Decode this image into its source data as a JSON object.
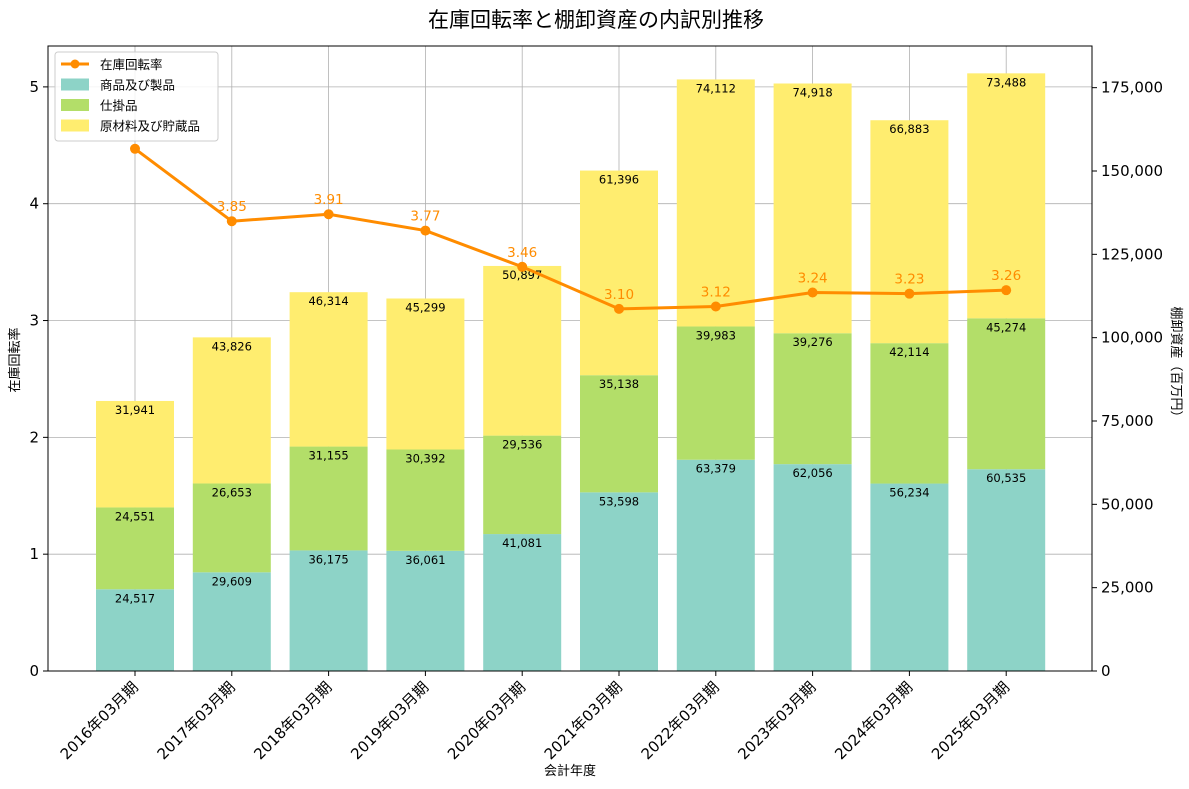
{
  "chart_data": {
    "type": "bar",
    "stacked": true,
    "title": "在庫回転率と棚卸資産の内訳別推移",
    "xlabel": "会計年度",
    "ylabel_left": "在庫回転率",
    "ylabel_right": "棚卸資産（百万円）",
    "ylim_left": [
      0,
      5.35
    ],
    "ylim_right": [
      0,
      187500
    ],
    "yticks_left": [
      "0",
      "1",
      "2",
      "3",
      "4",
      "5"
    ],
    "yticks_right": [
      "0",
      "25,000",
      "50,000",
      "75,000",
      "100,000",
      "125,000",
      "150,000",
      "175,000"
    ],
    "legend_position": "upper-left",
    "grid": true,
    "categories": [
      "2016年03月期",
      "2017年03月期",
      "2018年03月期",
      "2019年03月期",
      "2020年03月期",
      "2021年03月期",
      "2022年03月期",
      "2023年03月期",
      "2024年03月期",
      "2025年03月期"
    ],
    "series": [
      {
        "name": "商品及び製品",
        "kind": "bar",
        "color": "#8dd3c7",
        "values": [
          24517,
          29609,
          36175,
          36061,
          41081,
          53598,
          63379,
          62056,
          56234,
          60535
        ],
        "labels": [
          "24,517",
          "29,609",
          "36,175",
          "36,061",
          "41,081",
          "53,598",
          "63,379",
          "62,056",
          "56,234",
          "60,535"
        ]
      },
      {
        "name": "仕掛品",
        "kind": "bar",
        "color": "#b3de69",
        "values": [
          24551,
          26653,
          31155,
          30392,
          29536,
          35138,
          39983,
          39276,
          42114,
          45274
        ],
        "labels": [
          "24,551",
          "26,653",
          "31,155",
          "30,392",
          "29,536",
          "35,138",
          "39,983",
          "39,276",
          "42,114",
          "45,274"
        ]
      },
      {
        "name": "原材料及び貯蔵品",
        "kind": "bar",
        "color": "#ffed6f",
        "values": [
          31941,
          43826,
          46314,
          45299,
          50897,
          61396,
          74112,
          74918,
          66883,
          73488
        ],
        "labels": [
          "31,941",
          "43,826",
          "46,314",
          "45,299",
          "50,897",
          "61,396",
          "74,112",
          "74,918",
          "66,883",
          "73,488"
        ]
      },
      {
        "name": "在庫回転率",
        "kind": "line",
        "color": "#ff8c00",
        "values": [
          4.47,
          3.85,
          3.91,
          3.77,
          3.46,
          3.1,
          3.12,
          3.24,
          3.23,
          3.26
        ],
        "labels": [
          "",
          "3.85",
          "3.91",
          "3.77",
          "3.46",
          "3.10",
          "3.12",
          "3.24",
          "3.23",
          "3.26"
        ]
      }
    ]
  }
}
